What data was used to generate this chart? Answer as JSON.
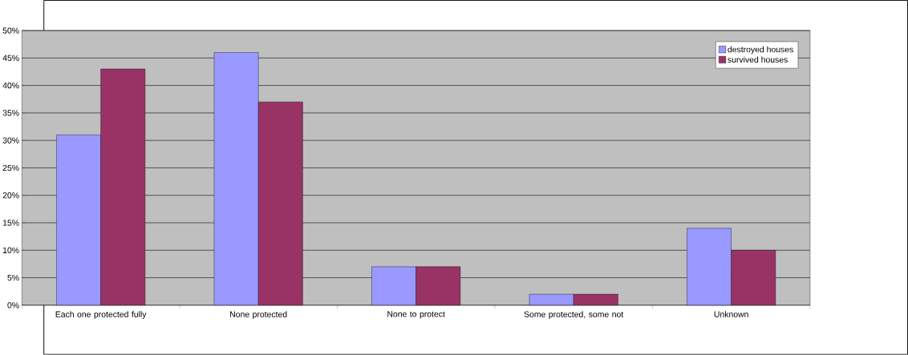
{
  "chart_data": {
    "type": "bar",
    "categories": [
      "Each one protected fully",
      "None protected",
      "None to protect",
      "Some protected, some not",
      "Unknown"
    ],
    "series": [
      {
        "name": "destroyed houses",
        "color": "#9999ff",
        "values": [
          31,
          46,
          7,
          2,
          14
        ]
      },
      {
        "name": "survived houses",
        "color": "#993366",
        "values": [
          43,
          37,
          7,
          2,
          10
        ]
      }
    ],
    "ylim": [
      0,
      50
    ],
    "yticks": [
      {
        "value": 0,
        "label": "0%"
      },
      {
        "value": 5,
        "label": "5%"
      },
      {
        "value": 10,
        "label": "10%"
      },
      {
        "value": 15,
        "label": "15%"
      },
      {
        "value": 20,
        "label": "20%"
      },
      {
        "value": 25,
        "label": "25%"
      },
      {
        "value": 30,
        "label": "30%"
      },
      {
        "value": 35,
        "label": "35%"
      },
      {
        "value": 40,
        "label": "40%"
      },
      {
        "value": 45,
        "label": "45%"
      },
      {
        "value": 50,
        "label": "50%"
      }
    ],
    "grid": "y",
    "legend": "top right"
  }
}
